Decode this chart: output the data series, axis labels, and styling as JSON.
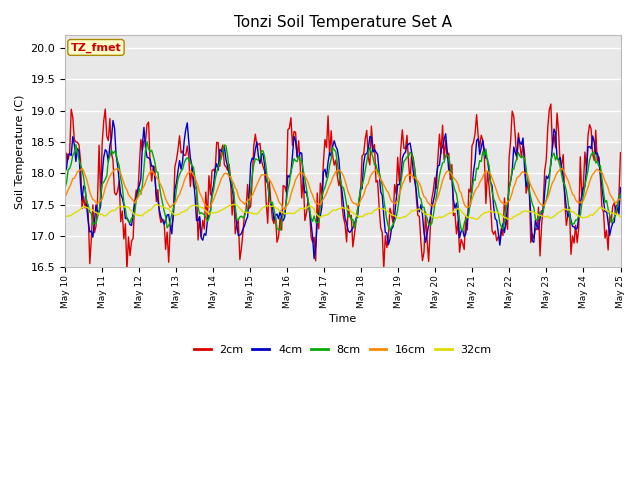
{
  "title": "Tonzi Soil Temperature Set A",
  "ylabel": "Soil Temperature (C)",
  "xlabel": "Time",
  "annotation": "TZ_fmet",
  "annotation_color": "#cc0000",
  "annotation_bg": "#ffffcc",
  "annotation_border": "#aa8800",
  "ylim": [
    16.5,
    20.2
  ],
  "yticks": [
    16.5,
    17.0,
    17.5,
    18.0,
    18.5,
    19.0,
    19.5,
    20.0
  ],
  "xtick_labels": [
    "May 10",
    "May 11",
    "May 12",
    "May 13",
    "May 14",
    "May 15",
    "May 16",
    "May 17",
    "May 18",
    "May 19",
    "May 20",
    "May 21",
    "May 22",
    "May 23",
    "May 24",
    "May 25"
  ],
  "colors": {
    "2cm": "#dd0000",
    "4cm": "#0000cc",
    "8cm": "#00aa00",
    "16cm": "#ff8800",
    "32cm": "#dddd00"
  },
  "legend_labels": [
    "2cm",
    "4cm",
    "8cm",
    "16cm",
    "32cm"
  ],
  "fig_facecolor": "#ffffff",
  "plot_bg_color": "#e8e8e8",
  "grid_color": "#ffffff",
  "n_points": 360
}
